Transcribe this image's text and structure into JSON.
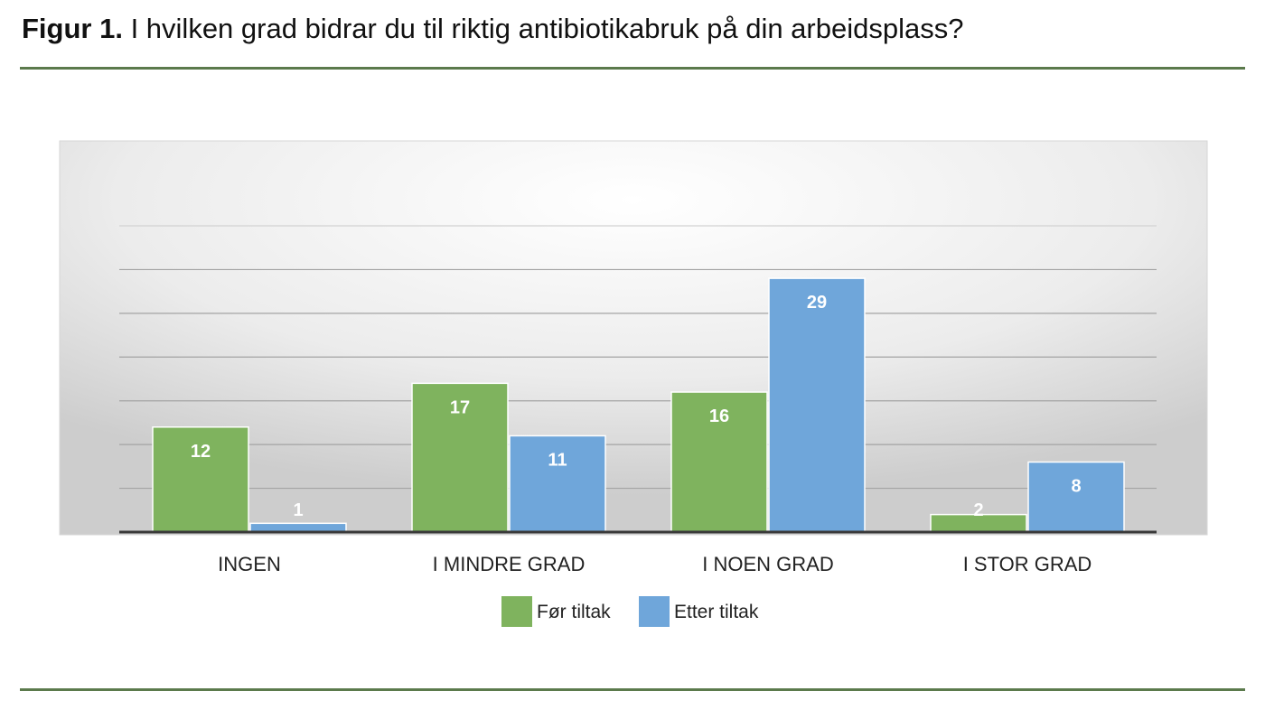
{
  "figure": {
    "label": "Figur 1.",
    "title": "I hvilken grad bidrar du til riktig antibiotikabruk på din arbeidsplass?"
  },
  "colors": {
    "series_1": "#7fb35e",
    "series_2": "#6fa6da",
    "rule": "#5b7a4c",
    "axis": "#3a3a3a"
  },
  "chart_data": {
    "type": "bar",
    "categories": [
      "INGEN",
      "I MINDRE GRAD",
      "I NOEN GRAD",
      "I STOR GRAD"
    ],
    "series": [
      {
        "name": "Før tiltak",
        "values": [
          12,
          17,
          16,
          2
        ]
      },
      {
        "name": "Etter tiltak",
        "values": [
          1,
          11,
          29,
          8
        ]
      }
    ],
    "ylim": [
      0,
      35
    ],
    "gridlines": [
      5,
      10,
      15,
      20,
      25,
      30,
      35
    ],
    "grid": true,
    "data_labels": true,
    "legend_position": "bottom"
  }
}
